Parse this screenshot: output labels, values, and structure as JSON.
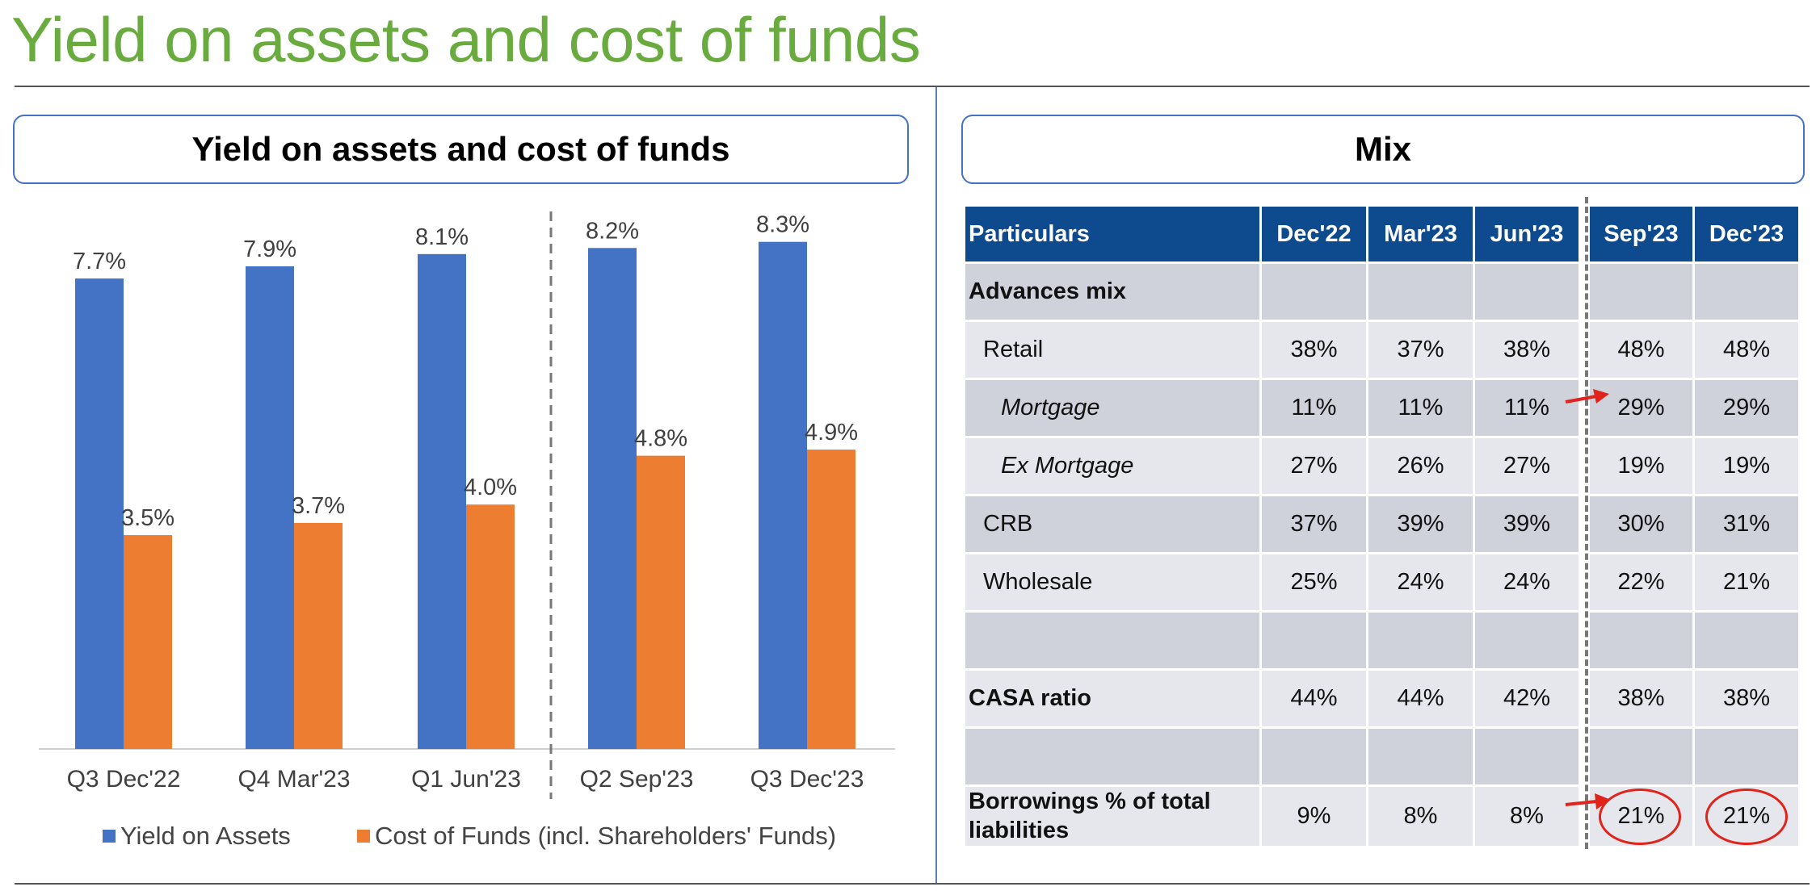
{
  "page": {
    "title": "Yield on assets and cost of funds"
  },
  "left_panel": {
    "title": "Yield on assets and cost of funds"
  },
  "right_panel": {
    "title": "Mix"
  },
  "colors": {
    "blue": "#4472c4",
    "orange": "#ed7d31",
    "green": "#6aab3f",
    "navy": "#0d4a8e",
    "red": "#e0231b"
  },
  "chart_data": {
    "type": "bar",
    "categories": [
      "Q3 Dec'22",
      "Q4 Mar'23",
      "Q1 Jun'23",
      "Q2 Sep'23",
      "Q3 Dec'23"
    ],
    "series": [
      {
        "name": "Yield on Assets",
        "values": [
          7.7,
          7.9,
          8.1,
          8.2,
          8.3
        ],
        "labels": [
          "7.7%",
          "7.9%",
          "8.1%",
          "8.2%",
          "8.3%"
        ]
      },
      {
        "name": "Cost of Funds (incl. Shareholders' Funds)",
        "values": [
          3.5,
          3.7,
          4.0,
          4.8,
          4.9
        ],
        "labels": [
          "3.5%",
          "3.7%",
          "4.0%",
          "4.8%",
          "4.9%"
        ]
      }
    ],
    "title": "Yield on assets and cost of funds",
    "xlabel": "",
    "ylabel": "",
    "ylim": [
      0,
      10
    ],
    "legend": "bottom",
    "grid": false
  },
  "mix_table": {
    "headers": [
      "Particulars",
      "Dec'22",
      "Mar'23",
      "Jun'23",
      "Sep'23",
      "Dec'23"
    ],
    "rows": [
      {
        "label": "Advances mix",
        "cells": [
          "",
          "",
          "",
          "",
          ""
        ]
      },
      {
        "label": "Retail",
        "cells": [
          "38%",
          "37%",
          "38%",
          "48%",
          "48%"
        ]
      },
      {
        "label": "Mortgage",
        "cells": [
          "11%",
          "11%",
          "11%",
          "29%",
          "29%"
        ]
      },
      {
        "label": "Ex Mortgage",
        "cells": [
          "27%",
          "26%",
          "27%",
          "19%",
          "19%"
        ]
      },
      {
        "label": "CRB",
        "cells": [
          "37%",
          "39%",
          "39%",
          "30%",
          "31%"
        ]
      },
      {
        "label": "Wholesale",
        "cells": [
          "25%",
          "24%",
          "24%",
          "22%",
          "21%"
        ]
      },
      {
        "label": "",
        "cells": [
          "",
          "",
          "",
          "",
          ""
        ]
      },
      {
        "label": "CASA ratio",
        "cells": [
          "44%",
          "44%",
          "42%",
          "38%",
          "38%"
        ]
      },
      {
        "label": "",
        "cells": [
          "",
          "",
          "",
          "",
          ""
        ]
      },
      {
        "label": "Borrowings % of total liabilities",
        "cells": [
          "9%",
          "8%",
          "8%",
          "21%",
          "21%"
        ]
      }
    ]
  }
}
